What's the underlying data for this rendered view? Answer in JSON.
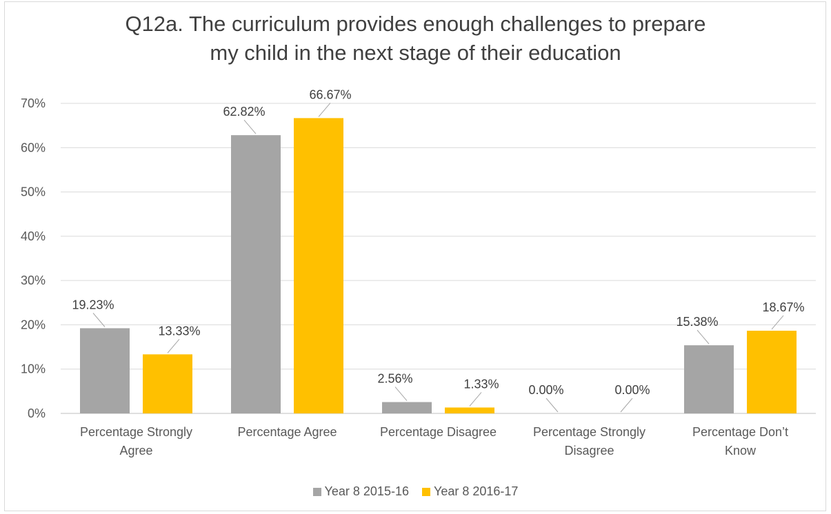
{
  "chart_data": {
    "type": "bar",
    "title_lines": [
      "Q12a. The curriculum provides enough challenges to prepare",
      "my child in the next stage of their education"
    ],
    "categories": [
      [
        "Percentage Strongly",
        "Agree"
      ],
      [
        "Percentage Agree"
      ],
      [
        "Percentage Disagree"
      ],
      [
        "Percentage Strongly",
        "Disagree"
      ],
      [
        "Percentage Don’t",
        "Know"
      ]
    ],
    "series": [
      {
        "name": "Year 8 2015-16",
        "color": "#a5a5a5",
        "values": [
          19.23,
          62.82,
          2.56,
          0.0,
          15.38
        ],
        "labels": [
          "19.23%",
          "62.82%",
          "2.56%",
          "0.00%",
          "15.38%"
        ]
      },
      {
        "name": "Year 8 2016-17",
        "color": "#ffc000",
        "values": [
          13.33,
          66.67,
          1.33,
          0.0,
          18.67
        ],
        "labels": [
          "13.33%",
          "66.67%",
          "1.33%",
          "0.00%",
          "18.67%"
        ]
      }
    ],
    "y_ticks": [
      0,
      10,
      20,
      30,
      40,
      50,
      60,
      70
    ],
    "y_tick_labels": [
      "0%",
      "10%",
      "20%",
      "30%",
      "40%",
      "50%",
      "60%",
      "70%"
    ],
    "ylim": [
      0,
      70
    ],
    "gridlines": true,
    "legend_position": "bottom"
  }
}
